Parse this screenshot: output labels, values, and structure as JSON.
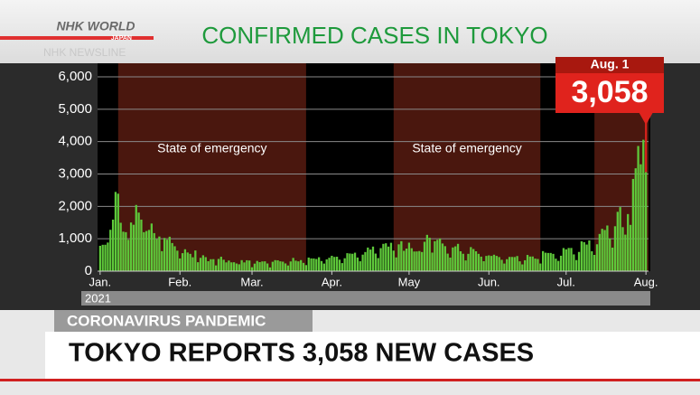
{
  "brand": {
    "logo": "NHK WORLD",
    "sub": "JAPAN",
    "program": "NHK NEWSLINE"
  },
  "headline": {
    "tag": "CORONAVIRUS PANDEMIC",
    "text": "TOKYO REPORTS 3,058 NEW CASES"
  },
  "chart_data": {
    "type": "bar",
    "title": "CONFIRMED CASES IN TOKYO",
    "x_label": "2021",
    "color": "#5ec83a",
    "grid": true,
    "x": [
      0,
      1,
      2,
      3,
      4,
      5,
      6,
      7,
      8,
      9,
      10,
      11,
      12,
      13,
      14,
      15,
      16,
      17,
      18,
      19,
      20,
      21,
      22,
      23,
      24,
      25,
      26,
      27,
      28,
      29,
      30,
      31,
      32,
      33,
      34,
      35,
      36,
      37,
      38,
      39,
      40,
      41,
      42,
      43,
      44,
      45,
      46,
      47,
      48,
      49,
      50,
      51,
      52,
      53,
      54,
      55,
      56,
      57,
      58,
      59,
      60,
      61,
      62,
      63,
      64,
      65,
      66,
      67,
      68,
      69,
      70,
      71,
      72,
      73,
      74,
      75,
      76,
      77,
      78,
      79,
      80,
      81,
      82,
      83,
      84,
      85,
      86,
      87,
      88,
      89,
      90,
      91,
      92,
      93,
      94,
      95,
      96,
      97,
      98,
      99,
      100,
      101,
      102,
      103,
      104,
      105,
      106,
      107,
      108,
      109,
      110,
      111,
      112,
      113,
      114,
      115,
      116,
      117,
      118,
      119,
      120,
      121,
      122,
      123,
      124,
      125,
      126,
      127,
      128,
      129,
      130,
      131,
      132,
      133,
      134,
      135,
      136,
      137,
      138,
      139,
      140,
      141,
      142,
      143,
      144,
      145,
      146,
      147,
      148,
      149,
      150,
      151,
      152,
      153,
      154,
      155,
      156,
      157,
      158,
      159,
      160,
      161,
      162,
      163,
      164,
      165,
      166,
      167,
      168,
      169,
      170,
      171,
      172,
      173,
      174,
      175,
      176,
      177,
      178,
      179,
      180,
      181,
      182,
      183,
      184,
      185,
      186,
      187,
      188,
      189,
      190,
      191,
      192,
      193,
      194,
      195,
      196,
      197,
      198,
      199,
      200,
      201,
      202,
      203,
      204,
      205,
      206,
      207,
      208,
      209,
      210,
      211,
      212
    ],
    "values": [
      783,
      814,
      816,
      884,
      1278,
      1591,
      2447,
      2392,
      1494,
      1219,
      1204,
      970,
      1502,
      1433,
      2044,
      1809,
      1592,
      1204,
      1240,
      1274,
      1471,
      1175,
      986,
      1070,
      618,
      1026,
      973,
      1064,
      868,
      769,
      633,
      393,
      556,
      676,
      577,
      535,
      429,
      639,
      276,
      412,
      491,
      434,
      307,
      369,
      371,
      178,
      378,
      445,
      353,
      271,
      327,
      272,
      275,
      237,
      213,
      340,
      270,
      337,
      329,
      121,
      232,
      316,
      279,
      301,
      303,
      237,
      116,
      290,
      340,
      335,
      304,
      293,
      239,
      175,
      300,
      409,
      323,
      303,
      342,
      256,
      187,
      420,
      394,
      392,
      376,
      430,
      313,
      234,
      364,
      414,
      475,
      440,
      446,
      355,
      249,
      399,
      555,
      545,
      537,
      570,
      421,
      306,
      510,
      591,
      729,
      667,
      759,
      543,
      405,
      711,
      843,
      861,
      759,
      876,
      635,
      425,
      828,
      925,
      629,
      697,
      879,
      708,
      607,
      609,
      621,
      591,
      907,
      1121,
      1032,
      573,
      925,
      969,
      1010,
      854,
      772,
      542,
      419,
      732,
      766,
      843,
      614,
      537,
      331,
      535,
      743,
      684,
      614,
      535,
      449,
      307,
      471,
      487,
      471,
      508,
      472,
      436,
      351,
      235,
      370,
      440,
      439,
      436,
      467,
      304,
      209,
      337,
      501,
      452,
      453,
      388,
      376,
      236,
      619,
      570,
      562,
      562,
      534,
      386,
      317,
      476,
      714,
      673,
      716,
      716,
      518,
      342,
      593,
      920,
      896,
      822,
      950,
      614,
      502,
      830,
      1149,
      1308,
      1271,
      1410,
      1008,
      727,
      1387,
      1832,
      1979,
      1359,
      1128,
      1763,
      1429,
      2848,
      3177,
      3865,
      3300,
      4058,
      3058
    ],
    "annotation": {
      "text": "Aug. 1",
      "value_label": "3,058"
    },
    "shaded_ranges": [
      {
        "start": 7,
        "end": 80,
        "label": "State of emergency"
      },
      {
        "start": 114,
        "end": 171,
        "label": "State of emergency"
      },
      {
        "start": 192,
        "end": 213
      }
    ],
    "xlim": [
      -1,
      213
    ],
    "xticks": [
      {
        "value": 0,
        "label": "Jan."
      },
      {
        "value": 31,
        "label": "Feb."
      },
      {
        "value": 59,
        "label": "Mar."
      },
      {
        "value": 90,
        "label": "Apr."
      },
      {
        "value": 120,
        "label": "May"
      },
      {
        "value": 151,
        "label": "Jun."
      },
      {
        "value": 181,
        "label": "Jul."
      },
      {
        "value": 212,
        "label": "Aug."
      }
    ],
    "ylim": [
      0,
      6000
    ],
    "yticks": [
      0,
      {
        "value": 1000,
        "label": "1,000"
      },
      {
        "value": 2000,
        "label": "2,000"
      },
      {
        "value": 3000,
        "label": "3,000"
      },
      {
        "value": 4000,
        "label": "4,000"
      },
      {
        "value": 5000,
        "label": "5,000"
      },
      {
        "value": 6000,
        "label": "6,000"
      }
    ]
  }
}
